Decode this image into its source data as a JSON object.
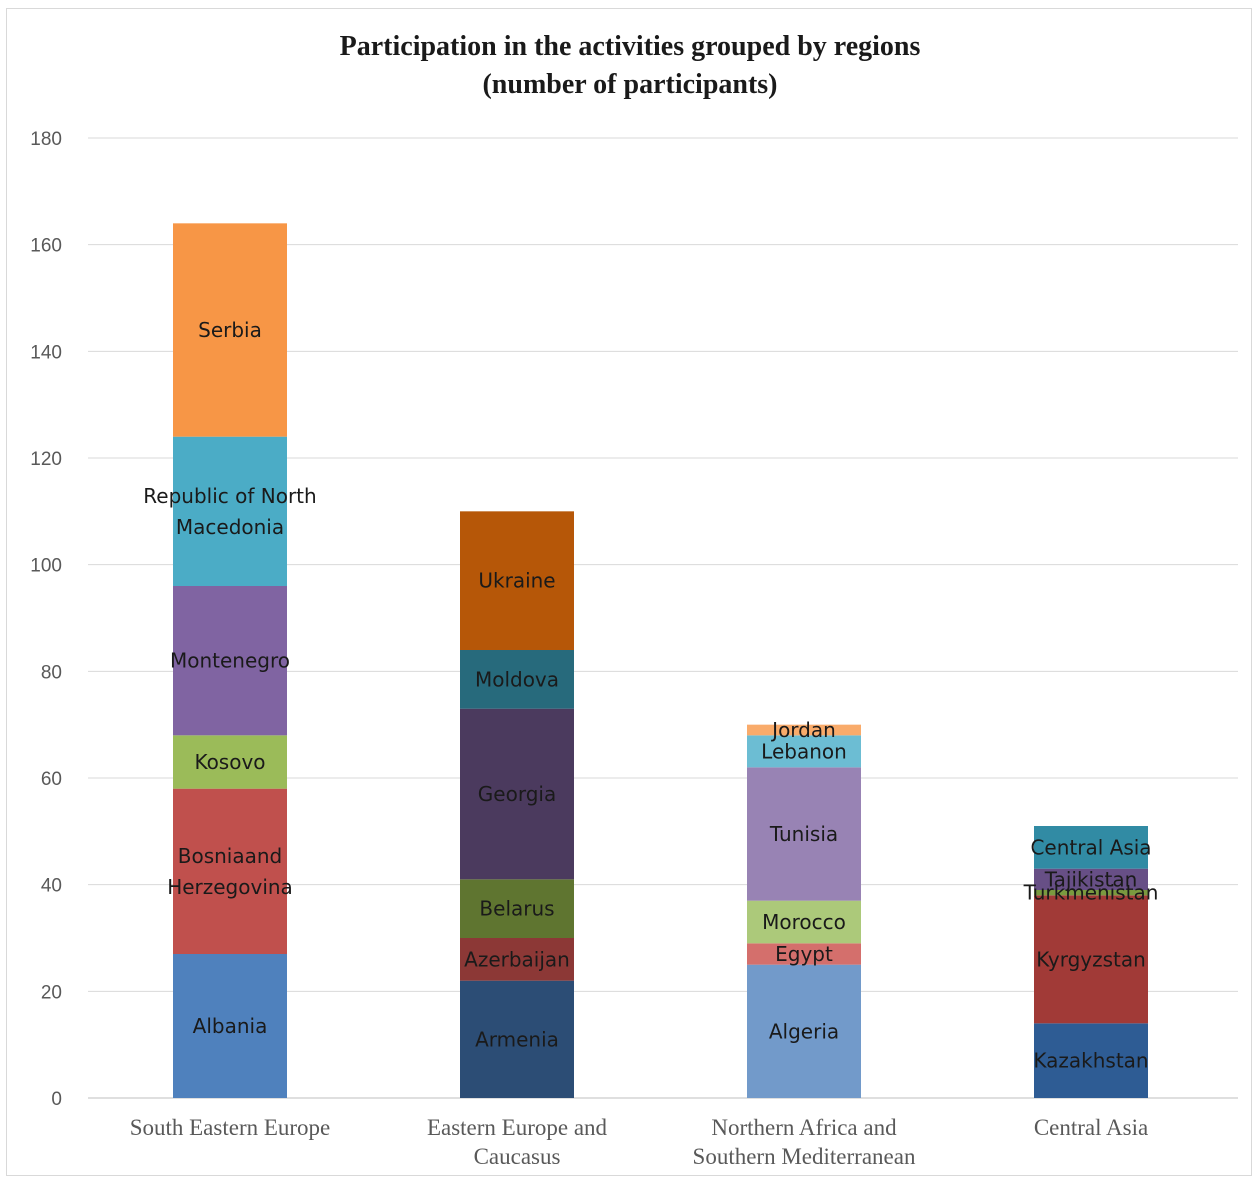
{
  "chart_data": {
    "type": "bar",
    "stacked": true,
    "title": "Participation  in the activities grouped by regions",
    "subtitle": "(number  of participants)",
    "xlabel": "",
    "ylabel": "",
    "ylim": [
      0,
      180
    ],
    "yticks": [
      0,
      20,
      40,
      60,
      80,
      100,
      120,
      140,
      160,
      180
    ],
    "grid": true,
    "legend": "none",
    "categories": [
      {
        "name": [
          "South Eastern Europe"
        ],
        "segments": [
          {
            "label": [
              "Albania"
            ],
            "value": 27,
            "color": "#4f81bd"
          },
          {
            "label": [
              "Bosniaand",
              "Herzegovina"
            ],
            "value": 31,
            "color": "#c0504d"
          },
          {
            "label": [
              "Kosovo"
            ],
            "value": 10,
            "color": "#9bbb59"
          },
          {
            "label": [
              "Montenegro"
            ],
            "value": 28,
            "color": "#8064a2"
          },
          {
            "label": [
              "Republic of North",
              "Macedonia"
            ],
            "value": 28,
            "color": "#4bacc6"
          },
          {
            "label": [
              "Serbia"
            ],
            "value": 40,
            "color": "#f79646"
          }
        ]
      },
      {
        "name": [
          "Eastern Europe and",
          "Caucasus"
        ],
        "segments": [
          {
            "label": [
              "Armenia"
            ],
            "value": 22,
            "color": "#2c4d75"
          },
          {
            "label": [
              "Azerbaijan"
            ],
            "value": 8,
            "color": "#8c3836"
          },
          {
            "label": [
              "Belarus"
            ],
            "value": 11,
            "color": "#5f7530"
          },
          {
            "label": [
              "Georgia"
            ],
            "value": 32,
            "color": "#4b3a5e"
          },
          {
            "label": [
              "Moldova"
            ],
            "value": 11,
            "color": "#276a7c"
          },
          {
            "label": [
              "Ukraine"
            ],
            "value": 26,
            "color": "#b65708"
          }
        ]
      },
      {
        "name": [
          "Northern Africa and",
          "Southern Mediterranean"
        ],
        "segments": [
          {
            "label": [
              "Algeria"
            ],
            "value": 25,
            "color": "#729aca"
          },
          {
            "label": [
              "Egypt"
            ],
            "value": 4,
            "color": "#d46f6c"
          },
          {
            "label": [
              "Morocco"
            ],
            "value": 8,
            "color": "#acc97a"
          },
          {
            "label": [
              "Tunisia"
            ],
            "value": 25,
            "color": "#9883b4"
          },
          {
            "label": [
              "Lebanon"
            ],
            "value": 6,
            "color": "#6cbdd3"
          },
          {
            "label": [
              "Jordan"
            ],
            "value": 2,
            "color": "#f9ab6b"
          }
        ]
      },
      {
        "name": [
          "Central Asia"
        ],
        "segments": [
          {
            "label": [
              "Kazakhstan"
            ],
            "value": 14,
            "color": "#2e5c94"
          },
          {
            "label": [
              "Kyrgyzstan"
            ],
            "value": 24,
            "color": "#a13a37"
          },
          {
            "label": [
              "Turkmenistan"
            ],
            "value": 1,
            "color": "#7a9a3f"
          },
          {
            "label": [
              "Tajikistan"
            ],
            "value": 4,
            "color": "#674f86"
          },
          {
            "label": [
              "Central Asia"
            ],
            "value": 8,
            "color": "#318ba4"
          }
        ]
      }
    ]
  }
}
